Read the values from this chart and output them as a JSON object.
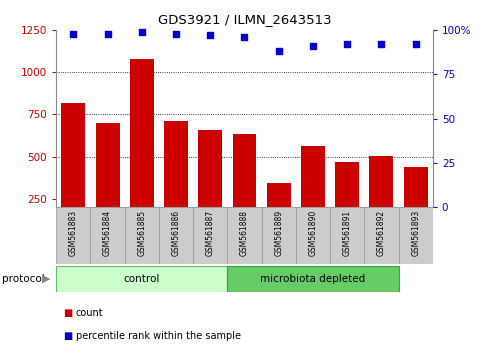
{
  "title": "GDS3921 / ILMN_2643513",
  "samples": [
    "GSM561883",
    "GSM561884",
    "GSM561885",
    "GSM561886",
    "GSM561887",
    "GSM561888",
    "GSM561889",
    "GSM561890",
    "GSM561891",
    "GSM561892",
    "GSM561893"
  ],
  "counts": [
    820,
    700,
    1080,
    710,
    660,
    635,
    340,
    560,
    470,
    505,
    440
  ],
  "percentile_ranks": [
    98,
    98,
    99,
    98,
    97,
    96,
    88,
    91,
    92,
    92,
    92
  ],
  "bar_color": "#cc0000",
  "dot_color": "#0000cc",
  "ylim_left": [
    200,
    1250
  ],
  "ylim_right": [
    0,
    100
  ],
  "yticks_left": [
    250,
    500,
    750,
    1000,
    1250
  ],
  "yticks_right": [
    0,
    25,
    50,
    75,
    100
  ],
  "ytick_right_labels": [
    "0",
    "25",
    "50",
    "75",
    "100%"
  ],
  "grid_values": [
    500,
    750,
    1000
  ],
  "protocol_groups": [
    {
      "label": "control",
      "start": 0,
      "end": 5,
      "color": "#ccffcc",
      "edge_color": "#66bb66"
    },
    {
      "label": "microbiota depleted",
      "start": 5,
      "end": 10,
      "color": "#66cc66",
      "edge_color": "#33aa33"
    }
  ],
  "legend_items": [
    {
      "label": "count",
      "color": "#cc0000"
    },
    {
      "label": "percentile rank within the sample",
      "color": "#0000cc"
    }
  ],
  "protocol_label": "protocol",
  "bar_bottom": 200,
  "label_box_color": "#cccccc",
  "label_box_edge": "#999999"
}
